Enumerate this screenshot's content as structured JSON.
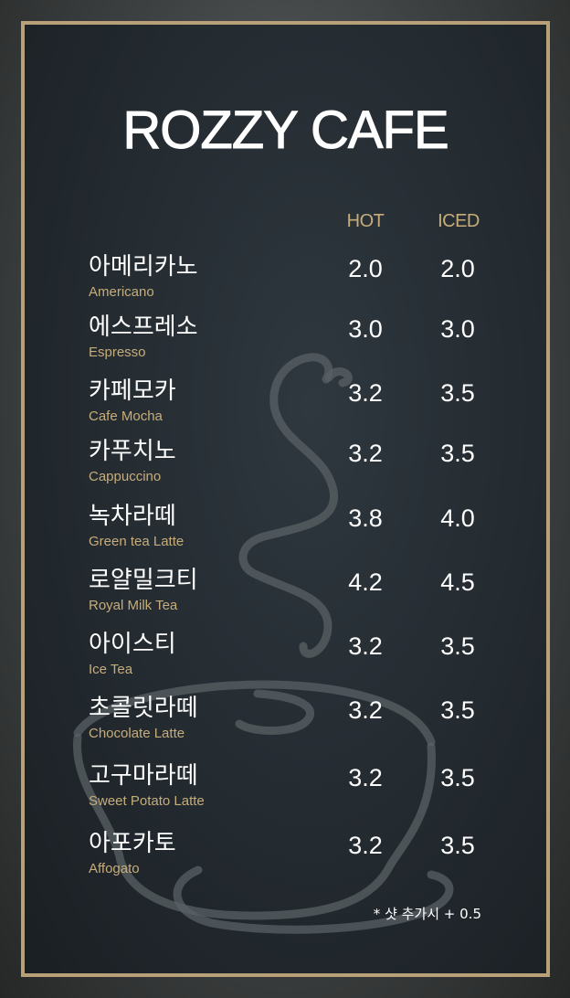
{
  "cafe_name": "ROZZY CAFE",
  "columns": {
    "hot": "HOT",
    "iced": "ICED"
  },
  "items": [
    {
      "name_ko": "아메리카노",
      "name_en": "Americano",
      "hot": "2.0",
      "iced": "2.0"
    },
    {
      "name_ko": "에스프레소",
      "name_en": "Espresso",
      "hot": "3.0",
      "iced": "3.0"
    },
    {
      "name_ko": "카페모카",
      "name_en": "Cafe Mocha",
      "hot": "3.2",
      "iced": "3.5"
    },
    {
      "name_ko": "카푸치노",
      "name_en": "Cappuccino",
      "hot": "3.2",
      "iced": "3.5"
    },
    {
      "name_ko": "녹차라떼",
      "name_en": "Green tea Latte",
      "hot": "3.8",
      "iced": "4.0"
    },
    {
      "name_ko": "로얄밀크티",
      "name_en": "Royal Milk Tea",
      "hot": "4.2",
      "iced": "4.5"
    },
    {
      "name_ko": "아이스티",
      "name_en": "Ice Tea",
      "hot": "3.2",
      "iced": "3.5"
    },
    {
      "name_ko": "초콜릿라떼",
      "name_en": "Chocolate Latte",
      "hot": "3.2",
      "iced": "3.5"
    },
    {
      "name_ko": "고구마라떼",
      "name_en": "Sweet Potato Latte",
      "hot": "3.2",
      "iced": "3.5"
    },
    {
      "name_ko": "아포카토",
      "name_en": "Affogato",
      "hot": "3.2",
      "iced": "3.5"
    }
  ],
  "note": "* 샷 추가시 + 0.5",
  "colors": {
    "accent_gold": "#c7ad7a",
    "frame_gold": "#b8a178",
    "board_bg": "#232a30",
    "text_white": "#ffffff"
  },
  "icons": {
    "decoration": "coffee-cup-steam-icon"
  }
}
